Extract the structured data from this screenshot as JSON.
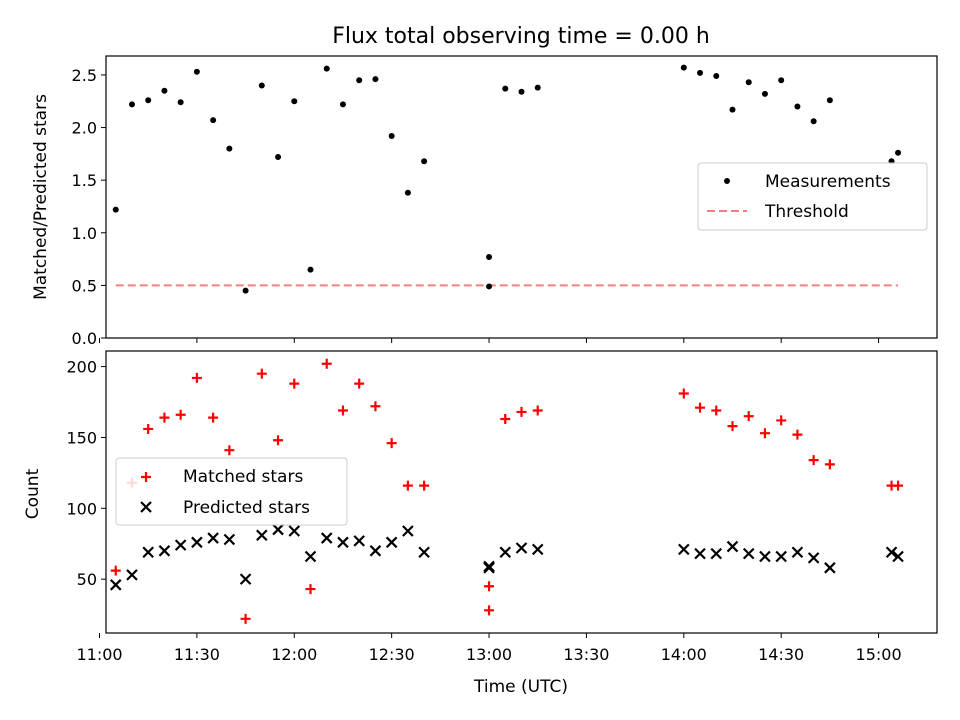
{
  "title": "Flux total observing time = 0.00 h",
  "chart_data": [
    {
      "type": "scatter",
      "title": "Flux total observing time = 0.00 h",
      "xlabel": "",
      "ylabel": "Matched/Predicted stars",
      "ylim": [
        0.0,
        2.68
      ],
      "yticks": [
        0.0,
        0.5,
        1.0,
        1.5,
        2.0,
        2.5
      ],
      "ytick_labels": [
        "0.0",
        "0.5",
        "1.0",
        "1.5",
        "2.0",
        "2.5"
      ],
      "grid": false,
      "legend": "center-right",
      "series": [
        {
          "name": "Measurements",
          "color": "#000000",
          "marker": "dot",
          "x": [
            "11:05",
            "11:10",
            "11:15",
            "11:20",
            "11:25",
            "11:30",
            "11:35",
            "11:40",
            "11:45",
            "11:50",
            "11:55",
            "12:00",
            "12:05",
            "12:10",
            "12:15",
            "12:20",
            "12:25",
            "12:30",
            "12:35",
            "12:40",
            "13:00",
            "13:00",
            "13:05",
            "13:10",
            "13:15",
            "14:00",
            "14:05",
            "14:10",
            "14:15",
            "14:20",
            "14:25",
            "14:30",
            "14:35",
            "14:40",
            "14:45",
            "15:04",
            "15:06"
          ],
          "y": [
            1.22,
            2.22,
            2.26,
            2.35,
            2.24,
            2.53,
            2.07,
            1.8,
            0.45,
            2.4,
            1.72,
            2.25,
            0.65,
            2.56,
            2.22,
            2.45,
            2.46,
            1.92,
            1.38,
            1.68,
            0.77,
            0.49,
            2.37,
            2.34,
            2.38,
            2.57,
            2.52,
            2.49,
            2.17,
            2.43,
            2.32,
            2.45,
            2.2,
            2.06,
            2.26,
            1.68,
            1.76
          ]
        },
        {
          "name": "Threshold",
          "color": "#f08080",
          "style": "dashed",
          "x": [
            "11:05",
            "15:06"
          ],
          "y": [
            0.5,
            0.5
          ]
        }
      ]
    },
    {
      "type": "scatter",
      "xlabel": "Time (UTC)",
      "ylabel": "Count",
      "ylim": [
        12,
        211
      ],
      "yticks": [
        50,
        100,
        150,
        200
      ],
      "ytick_labels": [
        "50",
        "100",
        "150",
        "200"
      ],
      "xlim": [
        "11:02",
        "15:18"
      ],
      "xticks": [
        "11:00",
        "11:30",
        "12:00",
        "12:30",
        "13:00",
        "13:30",
        "14:00",
        "14:30",
        "15:00"
      ],
      "grid": false,
      "legend": "center-left",
      "series": [
        {
          "name": "Matched stars",
          "color": "#ff0000",
          "marker": "plus",
          "x": [
            "11:05",
            "11:10",
            "11:15",
            "11:20",
            "11:25",
            "11:30",
            "11:35",
            "11:40",
            "11:45",
            "11:50",
            "11:55",
            "12:00",
            "12:05",
            "12:10",
            "12:15",
            "12:20",
            "12:25",
            "12:30",
            "12:35",
            "12:40",
            "13:00",
            "13:00",
            "13:05",
            "13:10",
            "13:15",
            "14:00",
            "14:05",
            "14:10",
            "14:15",
            "14:20",
            "14:25",
            "14:30",
            "14:35",
            "14:40",
            "14:45",
            "15:04",
            "15:06"
          ],
          "y": [
            56,
            118,
            156,
            164,
            166,
            192,
            164,
            141,
            22,
            195,
            148,
            188,
            43,
            202,
            169,
            188,
            172,
            146,
            116,
            116,
            45,
            28,
            163,
            168,
            169,
            181,
            171,
            169,
            158,
            165,
            153,
            162,
            152,
            134,
            131,
            116,
            116
          ]
        },
        {
          "name": "Predicted stars",
          "color": "#000000",
          "marker": "x",
          "x": [
            "11:05",
            "11:10",
            "11:15",
            "11:20",
            "11:25",
            "11:30",
            "11:35",
            "11:40",
            "11:45",
            "11:50",
            "11:55",
            "12:00",
            "12:05",
            "12:10",
            "12:15",
            "12:20",
            "12:25",
            "12:30",
            "12:35",
            "12:40",
            "13:00",
            "13:00",
            "13:05",
            "13:10",
            "13:15",
            "14:00",
            "14:05",
            "14:10",
            "14:15",
            "14:20",
            "14:25",
            "14:30",
            "14:35",
            "14:40",
            "14:45",
            "15:04",
            "15:06"
          ],
          "y": [
            46,
            53,
            69,
            70,
            74,
            76,
            79,
            78,
            50,
            81,
            85,
            84,
            66,
            79,
            76,
            77,
            70,
            76,
            84,
            69,
            58,
            59,
            69,
            72,
            71,
            71,
            68,
            68,
            73,
            68,
            66,
            66,
            69,
            65,
            58,
            69,
            66
          ]
        }
      ]
    }
  ]
}
